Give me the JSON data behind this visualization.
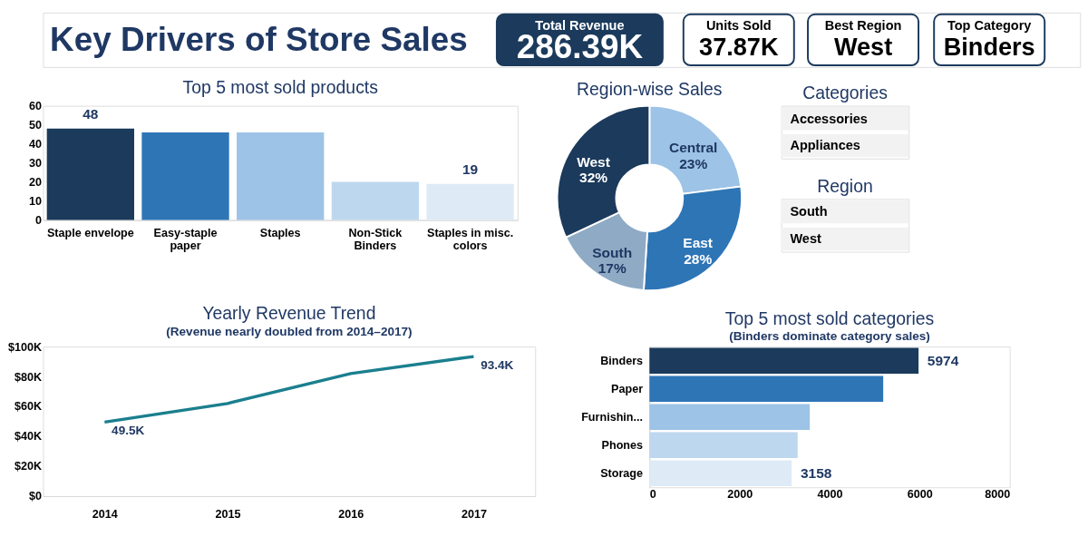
{
  "chart_data": [
    {
      "type": "other",
      "title": "Key Drivers of Store Sales",
      "annotations": [
        "Total Revenue",
        "286.39K",
        "Units Sold",
        "37.87K",
        "Best Region",
        "West",
        "Top Category",
        "Binders"
      ]
    },
    {
      "type": "bar",
      "title": "Top 5 most sold products",
      "categories": [
        "Staple envelope",
        "Easy-staple paper",
        "Staples",
        "Non-Stick Binders",
        "Staples in misc. colors"
      ],
      "values": [
        48,
        46,
        46,
        20,
        19
      ],
      "colors": [
        "#1b3a5c",
        "#2e75b6",
        "#9dc3e6",
        "#bdd7ee",
        "#deebf7"
      ],
      "value_labels": [
        "48",
        null,
        null,
        null,
        "19"
      ],
      "ylim": [
        0,
        60
      ],
      "yticks": [
        0,
        10,
        20,
        30,
        40,
        50,
        60
      ],
      "grid": false,
      "legend": false
    },
    {
      "type": "donut",
      "title": "Region-wise Sales",
      "categories": [
        "Central",
        "East",
        "South",
        "West"
      ],
      "values": [
        23,
        28,
        17,
        32
      ],
      "colors": [
        "#9dc3e6",
        "#2e75b6",
        "#8faac4",
        "#1b3a5c"
      ],
      "value_labels": [
        "23%",
        "28%",
        "17%",
        "32%"
      ],
      "legend": false
    },
    {
      "type": "other",
      "title": "Categories",
      "annotations": [
        "Accessories",
        "Appliances"
      ]
    },
    {
      "type": "other",
      "title": "Region",
      "annotations": [
        "South",
        "West"
      ]
    },
    {
      "type": "line",
      "title": "Yearly Revenue Trend",
      "subtitle": "(Revenue nearly doubled from 2014–2017)",
      "categories": [
        "2014",
        "2015",
        "2016",
        "2017"
      ],
      "series": [
        {
          "color": "#1a7f8e",
          "values": [
            49500,
            62000,
            82000,
            93400
          ],
          "value_labels": [
            "49.5K",
            null,
            null,
            "93.4K"
          ]
        }
      ],
      "ylim": [
        0,
        100000
      ],
      "yticks": [
        {
          "value": 0,
          "label": "$0"
        },
        {
          "value": 20000,
          "label": "$20K"
        },
        {
          "value": 40000,
          "label": "$40K"
        },
        {
          "value": 60000,
          "label": "$60K"
        },
        {
          "value": 80000,
          "label": "$80K"
        },
        {
          "value": 100000,
          "label": "$100K"
        }
      ],
      "grid": false,
      "legend": false
    },
    {
      "type": "bar",
      "orientation": "horizontal",
      "title": "Top 5 most sold categories",
      "subtitle": "(Binders dominate category sales)",
      "categories": [
        "Binders",
        "Paper",
        "Furnishin...",
        "Phones",
        "Storage"
      ],
      "values": [
        5974,
        5190,
        3560,
        3290,
        3158
      ],
      "colors": [
        "#1b3a5c",
        "#2e75b6",
        "#9dc3e6",
        "#bdd7ee",
        "#deebf7"
      ],
      "value_labels": [
        "5974",
        null,
        null,
        null,
        "3158"
      ],
      "xlim": [
        0,
        8000
      ],
      "xticks": [
        0,
        2000,
        4000,
        6000,
        8000
      ],
      "grid": false,
      "legend": false
    }
  ]
}
